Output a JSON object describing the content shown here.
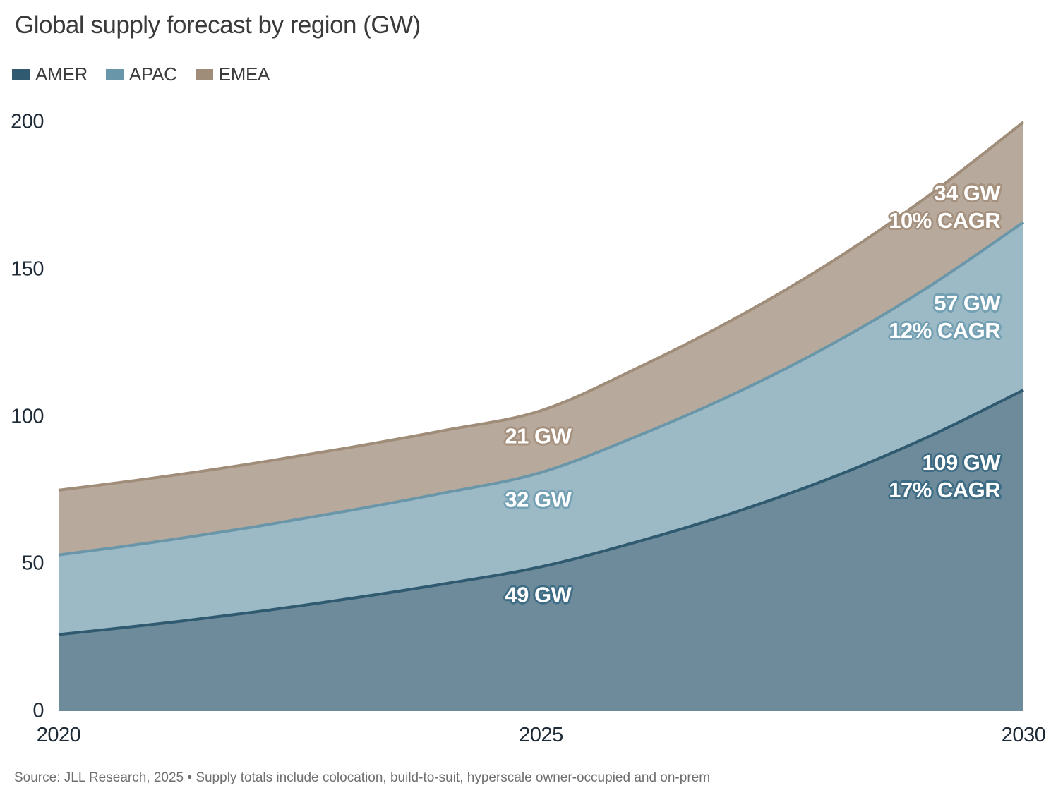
{
  "title": "Global supply forecast by region (GW)",
  "footer": {
    "source": "Source: JLL Research, 2025 • Supply totals include colocation, build-to-suit, hyperscale owner-occupied and on-prem"
  },
  "chart_data": {
    "type": "area",
    "stacked": true,
    "title": "Global supply forecast by region (GW)",
    "x": [
      2020,
      2021,
      2022,
      2023,
      2024,
      2025,
      2026,
      2027,
      2028,
      2029,
      2030
    ],
    "series": [
      {
        "name": "AMER",
        "values": [
          26,
          29.5,
          33.5,
          38.1,
          43.2,
          49,
          57.5,
          67.4,
          79.1,
          92.9,
          109
        ],
        "value_2025": "49 GW",
        "value_2030": "109 GW",
        "cagr_2025_2030": "17% CAGR",
        "color": "#2f5a6f",
        "fill": "#6d8b9b",
        "halo": "#3e6c85"
      },
      {
        "name": "APAC",
        "values": [
          27,
          27.9,
          28.9,
          29.9,
          30.9,
          32,
          35.9,
          40.3,
          45.2,
          50.8,
          57
        ],
        "value_2025": "32 GW",
        "value_2030": "57 GW",
        "cagr_2025_2030": "12% CAGR",
        "color": "#6997a9",
        "fill": "#9cb9c6",
        "halo": "#74a0b3"
      },
      {
        "name": "EMEA",
        "values": [
          22,
          21.8,
          21.6,
          21.4,
          21.2,
          21,
          23.1,
          25.4,
          28,
          30.9,
          34
        ],
        "value_2025": "21 GW",
        "value_2030": "34 GW",
        "cagr_2025_2030": "10% CAGR",
        "color": "#a08d79",
        "fill": "#b7a99c",
        "halo": "#a5917e"
      }
    ],
    "ylim": [
      0,
      200
    ],
    "yticks": [
      0,
      50,
      100,
      150,
      200
    ],
    "xticks": [
      2020,
      2025,
      2030
    ],
    "grid": false,
    "legend_position": "top-left",
    "annotations": [
      {
        "lines": [
          "34 GW",
          "10% CAGR"
        ],
        "series": "EMEA",
        "year": 2029.76,
        "value": 171.3,
        "align": "right"
      },
      {
        "lines": [
          "57 GW",
          "12% CAGR"
        ],
        "series": "APAC",
        "year": 2029.76,
        "value": 133.9,
        "align": "right"
      },
      {
        "lines": [
          "109 GW",
          "17% CAGR"
        ],
        "series": "AMER",
        "year": 2029.76,
        "value": 79.8,
        "align": "right"
      },
      {
        "lines": [
          "21 GW"
        ],
        "series": "EMEA",
        "year": 2024.97,
        "value": 93.4,
        "align": "center"
      },
      {
        "lines": [
          "32 GW"
        ],
        "series": "APAC",
        "year": 2024.97,
        "value": 71.9,
        "align": "center"
      },
      {
        "lines": [
          "49 GW"
        ],
        "series": "AMER",
        "year": 2024.97,
        "value": 39.5,
        "align": "center"
      }
    ]
  }
}
